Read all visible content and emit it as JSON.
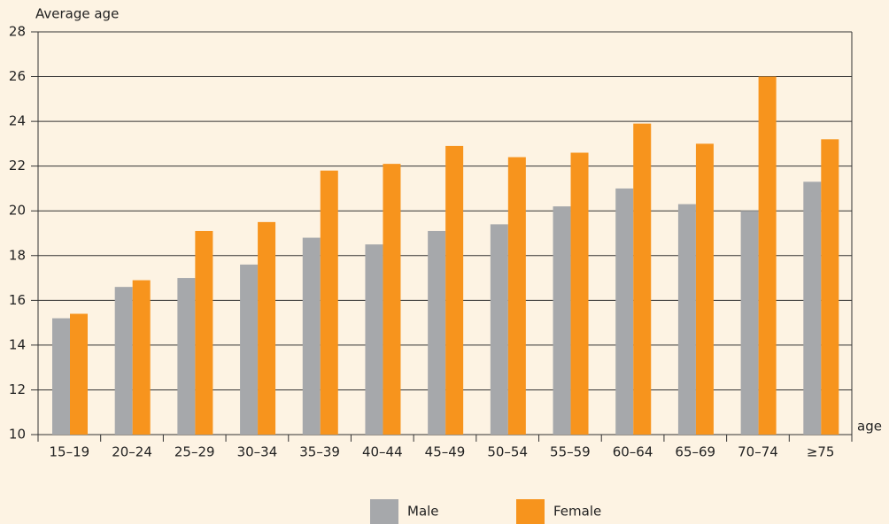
{
  "chart_data": {
    "type": "bar",
    "y_label": "Average age",
    "x_label": "age",
    "categories": [
      "15–19",
      "20–24",
      "25–29",
      "30–34",
      "35–39",
      "40–44",
      "45–49",
      "50–54",
      "55–59",
      "60–64",
      "65–69",
      "70–74",
      "≥75"
    ],
    "series": [
      {
        "name": "Male",
        "color": "#a6a8ab",
        "values": [
          15.2,
          16.6,
          17.0,
          17.6,
          18.8,
          18.5,
          19.1,
          19.4,
          20.2,
          21.0,
          20.3,
          20.0,
          21.3
        ]
      },
      {
        "name": "Female",
        "color": "#f7941d",
        "values": [
          15.4,
          16.9,
          19.1,
          19.5,
          21.8,
          22.1,
          22.9,
          22.4,
          22.6,
          23.9,
          23.0,
          26.0,
          23.2
        ]
      }
    ],
    "ylim": [
      10,
      28
    ],
    "yticks": [
      10,
      12,
      14,
      16,
      18,
      20,
      22,
      24,
      26,
      28
    ],
    "grid": true
  }
}
